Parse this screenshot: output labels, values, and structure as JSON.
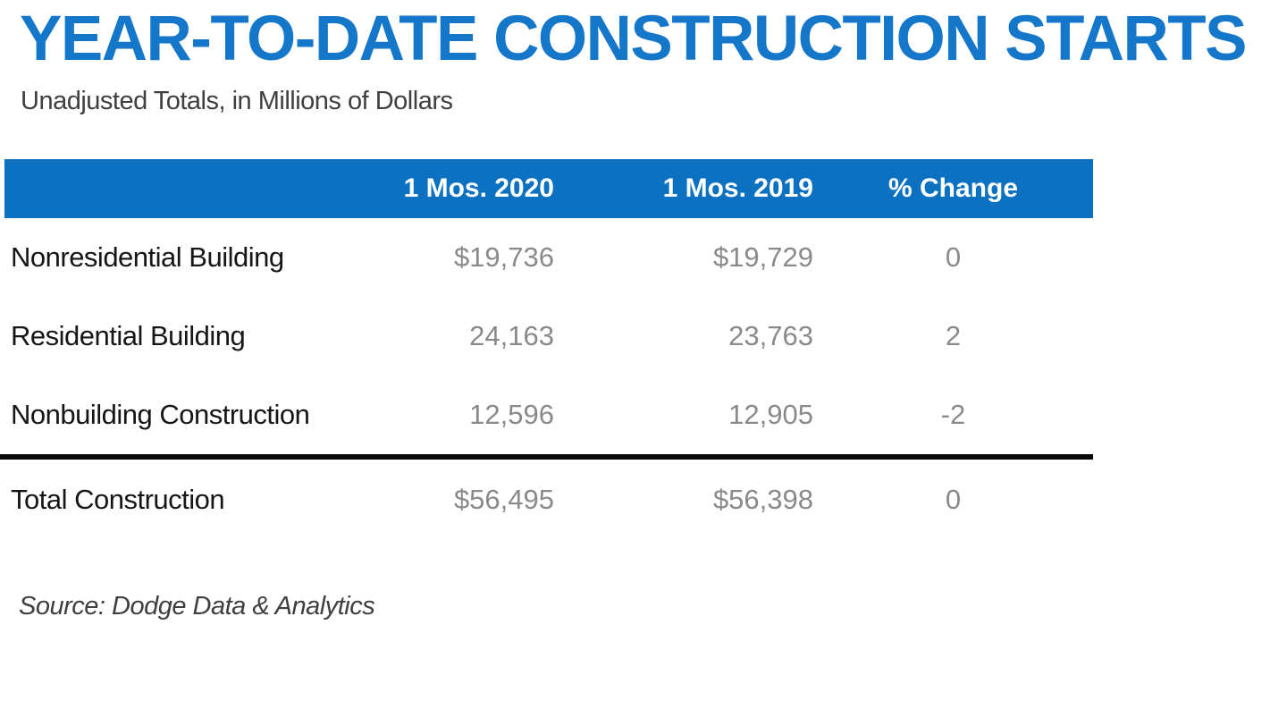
{
  "colors": {
    "title_blue": "#1577c9",
    "header_bg": "#0b71c0",
    "header_text": "#ffffff",
    "label_dark": "#161616",
    "value_gray": "#8a8a8a",
    "subtitle_gray": "#3f3f3f",
    "divider_black": "#0a0a0a"
  },
  "chart_data": {
    "type": "table",
    "title": "YEAR-TO-DATE CONSTRUCTION STARTS",
    "subtitle": "Unadjusted Totals, in Millions of Dollars",
    "columns": [
      "1 Mos. 2020",
      "1 Mos. 2019",
      "% Change"
    ],
    "rows": [
      {
        "label": "Nonresidential Building",
        "mos2020": "$19,736",
        "mos2019": "$19,729",
        "pct_change": "0"
      },
      {
        "label": "Residential Building",
        "mos2020": "24,163",
        "mos2019": "23,763",
        "pct_change": "2"
      },
      {
        "label": "Nonbuilding Construction",
        "mos2020": "12,596",
        "mos2019": "12,905",
        "pct_change": "-2"
      }
    ],
    "total": {
      "label": "Total Construction",
      "mos2020": "$56,495",
      "mos2019": "$56,398",
      "pct_change": "0"
    },
    "source": "Source: Dodge Data & Analytics",
    "layout": {
      "grid": "off",
      "legend": "none",
      "header_fill": "blue",
      "values_aligned": "right"
    }
  }
}
